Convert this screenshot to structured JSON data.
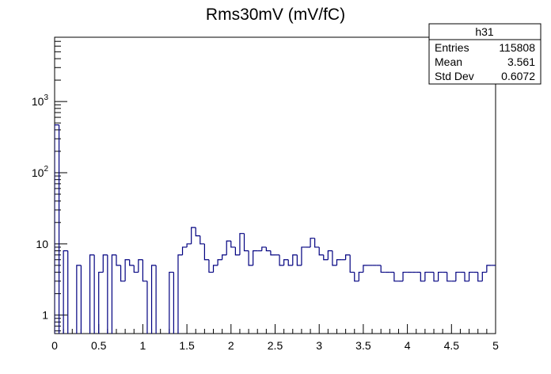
{
  "chart_data": {
    "type": "histogram",
    "title": "Rms30mV (mV/fC)",
    "xlabel": "",
    "ylabel": "",
    "xlim": [
      0,
      5
    ],
    "ylog": true,
    "ylim": [
      0.55,
      8000
    ],
    "x_ticks": [
      "0",
      "0.5",
      "1",
      "1.5",
      "2",
      "2.5",
      "3",
      "3.5",
      "4",
      "4.5",
      "5"
    ],
    "y_ticks": [
      {
        "base": "1",
        "exp": ""
      },
      {
        "base": "10",
        "exp": ""
      },
      {
        "base": "10",
        "exp": "2"
      },
      {
        "base": "10",
        "exp": "3"
      }
    ],
    "line_color": "#000080",
    "bin_width": 0.05,
    "counts": [
      470,
      0,
      8,
      0,
      0,
      5,
      0,
      0,
      7,
      0,
      4,
      7,
      0,
      7,
      5,
      3,
      6,
      5,
      4,
      6,
      3,
      0,
      5,
      0,
      0,
      0,
      4,
      0,
      7,
      9,
      10,
      17,
      13,
      10,
      6,
      4,
      5,
      6,
      7,
      11,
      9,
      7,
      14,
      8,
      5,
      8,
      8,
      9,
      8,
      7,
      7,
      5,
      6,
      5,
      7,
      5,
      9,
      9,
      12,
      9,
      7,
      6,
      8,
      5,
      6,
      6,
      7,
      4,
      3,
      4,
      5,
      5,
      5,
      5,
      4,
      4,
      4,
      3,
      3,
      4,
      4,
      4,
      4,
      3,
      4,
      4,
      3,
      4,
      4,
      3,
      3,
      4,
      4,
      3,
      4,
      4,
      3,
      4,
      5,
      5
    ],
    "stats": {
      "name": "h31",
      "rows": [
        {
          "label": "Entries",
          "value": "115808"
        },
        {
          "label": "Mean",
          "value": "3.561"
        },
        {
          "label": "Std Dev",
          "value": "0.6072"
        }
      ]
    }
  }
}
